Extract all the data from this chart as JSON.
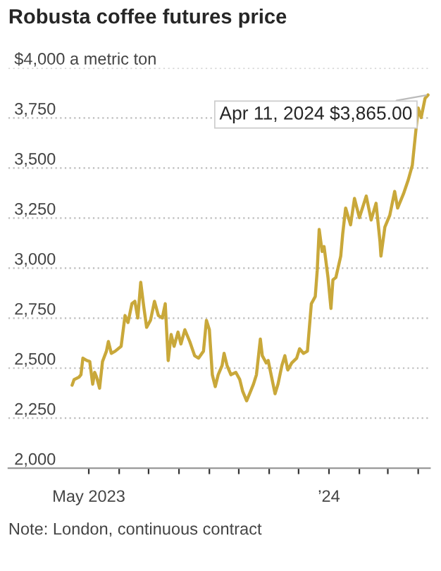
{
  "chart_data": {
    "type": "line",
    "title": "Robusta coffee futures price",
    "x": [
      "2023-04-14",
      "2023-04-16",
      "2023-04-21",
      "2023-04-23",
      "2023-04-25",
      "2023-04-29",
      "2023-05-02",
      "2023-05-05",
      "2023-05-07",
      "2023-05-09",
      "2023-05-12",
      "2023-05-15",
      "2023-05-19",
      "2023-05-21",
      "2023-05-24",
      "2023-05-28",
      "2023-06-03",
      "2023-06-07",
      "2023-06-10",
      "2023-06-14",
      "2023-06-17",
      "2023-06-20",
      "2023-06-23",
      "2023-06-26",
      "2023-06-29",
      "2023-07-03",
      "2023-07-07",
      "2023-07-11",
      "2023-07-15",
      "2023-07-18",
      "2023-07-21",
      "2023-07-24",
      "2023-07-27",
      "2023-07-31",
      "2023-08-03",
      "2023-08-07",
      "2023-08-12",
      "2023-08-17",
      "2023-08-21",
      "2023-08-26",
      "2023-08-29",
      "2023-09-01",
      "2023-09-04",
      "2023-09-07",
      "2023-09-10",
      "2023-09-14",
      "2023-09-16",
      "2023-09-19",
      "2023-09-23",
      "2023-09-28",
      "2023-10-02",
      "2023-10-05",
      "2023-10-09",
      "2023-10-12",
      "2023-10-16",
      "2023-10-19",
      "2023-10-23",
      "2023-10-25",
      "2023-10-29",
      "2023-10-31",
      "2023-11-04",
      "2023-11-07",
      "2023-11-10",
      "2023-11-14",
      "2023-11-17",
      "2023-11-20",
      "2023-11-24",
      "2023-11-29",
      "2023-12-02",
      "2023-12-06",
      "2023-12-10",
      "2023-12-14",
      "2023-12-18",
      "2023-12-20",
      "2023-12-22",
      "2023-12-25",
      "2023-12-27",
      "2023-12-31",
      "2024-01-03",
      "2024-01-05",
      "2024-01-08",
      "2024-01-13",
      "2024-01-15",
      "2024-01-18",
      "2024-01-23",
      "2024-01-27",
      "2024-02-01",
      "2024-02-08",
      "2024-02-13",
      "2024-02-18",
      "2024-02-22",
      "2024-02-23",
      "2024-02-27",
      "2024-03-03",
      "2024-03-08",
      "2024-03-11",
      "2024-03-17",
      "2024-03-22",
      "2024-03-26",
      "2024-03-28",
      "2024-03-30",
      "2024-04-01",
      "2024-04-04",
      "2024-04-08",
      "2024-04-11"
    ],
    "series": [
      {
        "color": "#c9a83a",
        "values": [
          2415,
          2443,
          2455,
          2467,
          2550,
          2538,
          2533,
          2420,
          2479,
          2455,
          2400,
          2533,
          2585,
          2633,
          2574,
          2585,
          2609,
          2763,
          2728,
          2822,
          2834,
          2751,
          2929,
          2810,
          2704,
          2740,
          2834,
          2763,
          2751,
          2822,
          2538,
          2668,
          2609,
          2680,
          2621,
          2692,
          2633,
          2562,
          2550,
          2585,
          2739,
          2692,
          2467,
          2408,
          2467,
          2514,
          2574,
          2514,
          2467,
          2479,
          2443,
          2384,
          2337,
          2372,
          2420,
          2467,
          2645,
          2562,
          2526,
          2538,
          2443,
          2372,
          2420,
          2514,
          2562,
          2491,
          2526,
          2550,
          2597,
          2574,
          2585,
          2822,
          2858,
          2988,
          3193,
          3083,
          3107,
          2953,
          2798,
          2941,
          2953,
          3060,
          3171,
          3300,
          3216,
          3348,
          3252,
          3360,
          3240,
          3324,
          3133,
          3060,
          3205,
          3264,
          3383,
          3300,
          3371,
          3443,
          3514,
          3610,
          3705,
          3800,
          3752,
          3848,
          3865
        ]
      }
    ],
    "xlim": [
      "2023-02-08",
      "2024-04-13"
    ],
    "xticks": [
      {
        "value": "2023-05-01",
        "label": "May 2023"
      },
      {
        "value": "2023-06-01",
        "label": null
      },
      {
        "value": "2023-07-01",
        "label": null
      },
      {
        "value": "2023-08-01",
        "label": null
      },
      {
        "value": "2023-09-01",
        "label": null
      },
      {
        "value": "2023-10-01",
        "label": null
      },
      {
        "value": "2023-11-01",
        "label": null
      },
      {
        "value": "2023-12-01",
        "label": null
      },
      {
        "value": "2024-01-01",
        "label": "’24"
      },
      {
        "value": "2024-02-01",
        "label": null
      },
      {
        "value": "2024-03-01",
        "label": null
      },
      {
        "value": "2024-04-01",
        "label": null
      }
    ],
    "ylim": [
      2000,
      4000
    ],
    "yticks": [
      {
        "value": 2000,
        "label": "2,000"
      },
      {
        "value": 2250,
        "label": "2,250"
      },
      {
        "value": 2500,
        "label": "2,500"
      },
      {
        "value": 2750,
        "label": "2,750"
      },
      {
        "value": 3000,
        "label": "3,000"
      },
      {
        "value": 3250,
        "label": "3,250"
      },
      {
        "value": 3500,
        "label": "3,500"
      },
      {
        "value": 3750,
        "label": "3,750"
      },
      {
        "value": 4000,
        "label": "$4,000 a metric ton"
      }
    ],
    "grid": "y",
    "annotations": [
      {
        "text": "Apr 11, 2024 $3,865.00",
        "x": "2024-04-11",
        "y": 3865
      },
      "Note: London, continuous contract"
    ]
  }
}
